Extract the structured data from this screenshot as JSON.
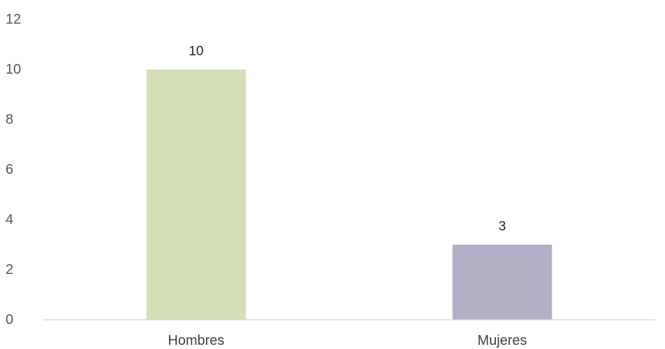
{
  "chart_data": {
    "type": "bar",
    "categories": [
      "Hombres",
      "Mujeres"
    ],
    "values": [
      10,
      3
    ],
    "data_labels": [
      "10",
      "3"
    ],
    "colors": [
      "#d6e0b8",
      "#b3aec6"
    ],
    "axis_color": "#d9d9d9",
    "ylim": [
      0,
      12
    ],
    "yticks": [
      0,
      2,
      4,
      6,
      8,
      10,
      12
    ],
    "ytick_labels": [
      "0",
      "2",
      "4",
      "6",
      "8",
      "10",
      "12"
    ],
    "grid": false,
    "legend": "none",
    "title": "",
    "xlabel": "",
    "ylabel": ""
  }
}
